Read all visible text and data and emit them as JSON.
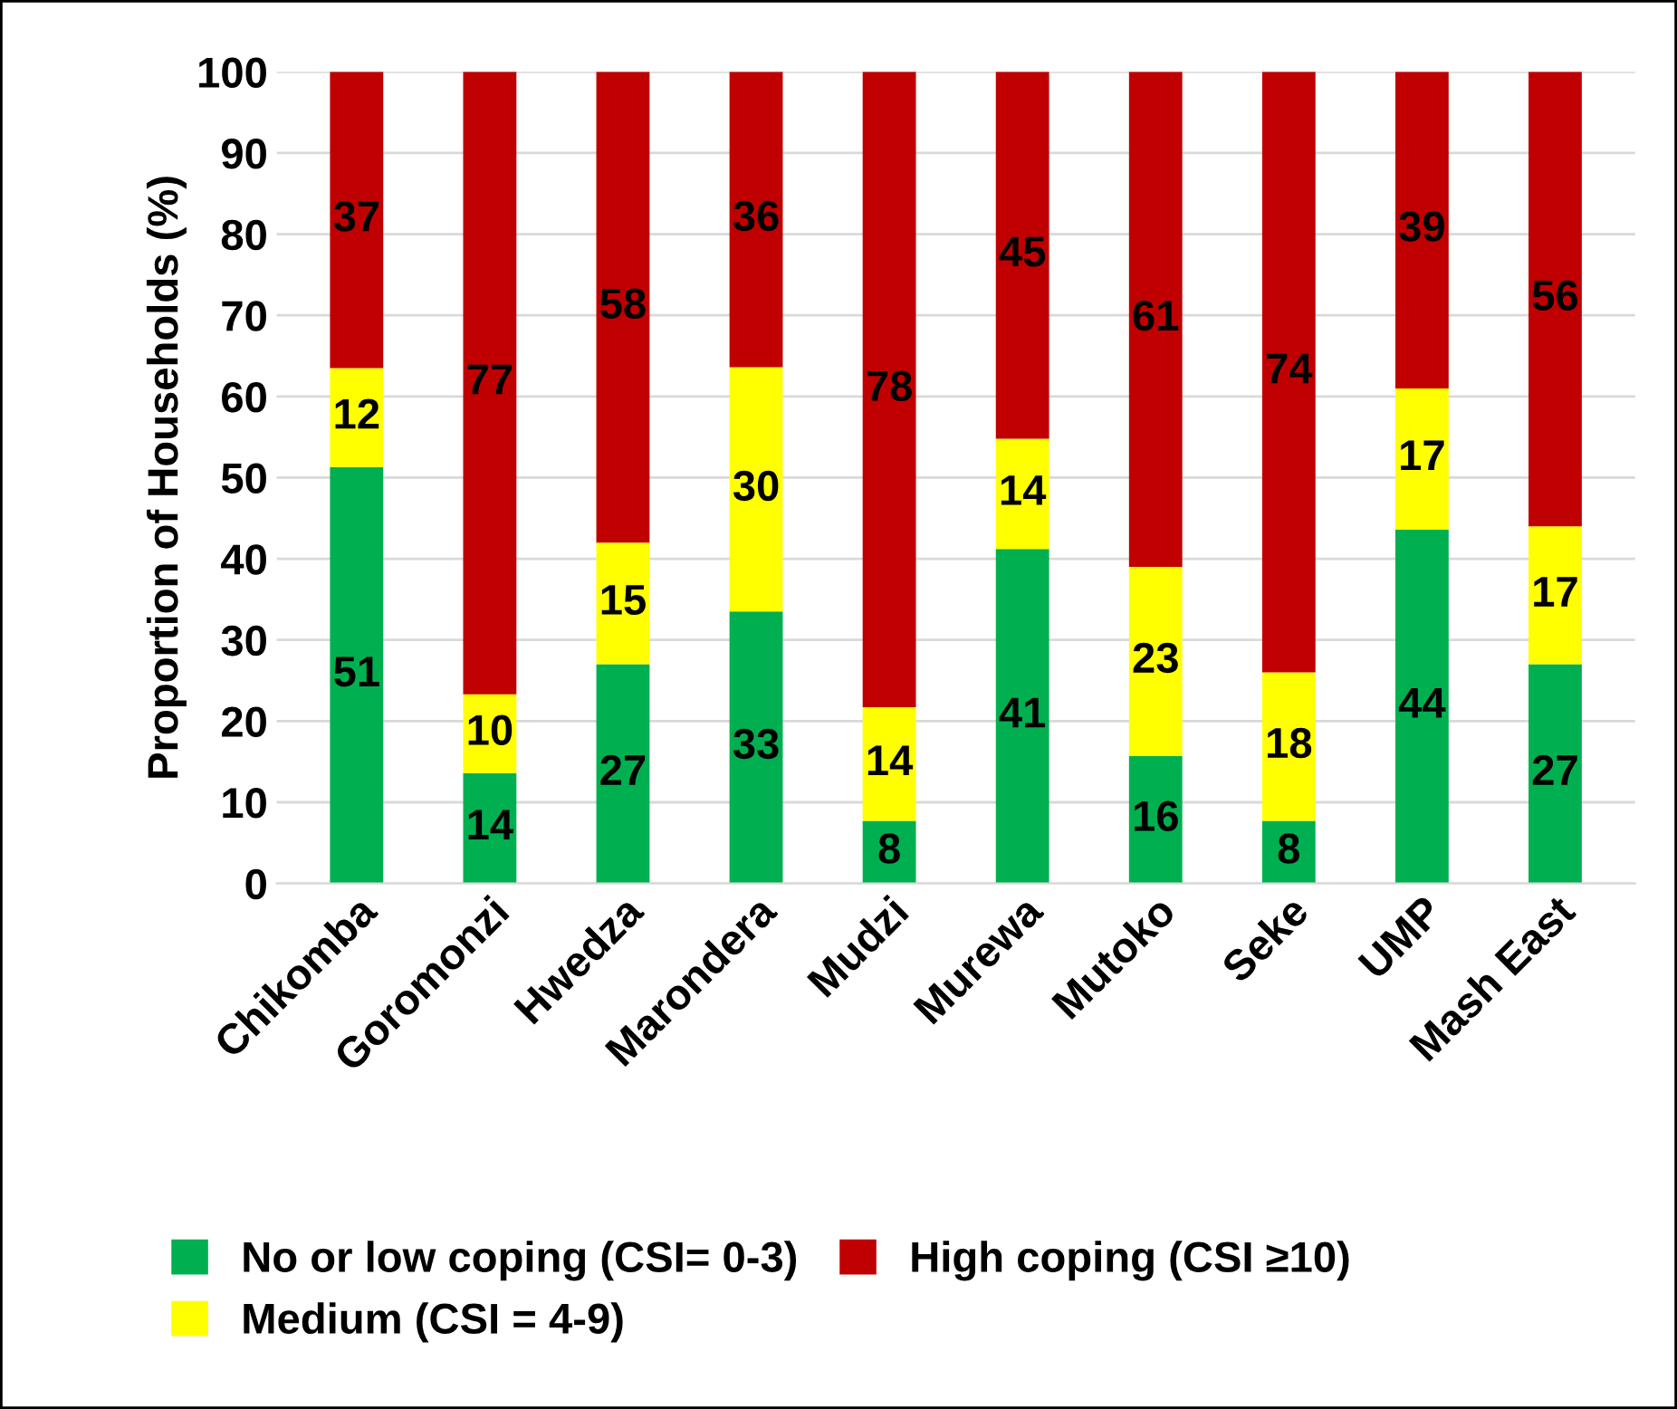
{
  "chart_data": {
    "type": "bar",
    "stacked": true,
    "ylabel": "Proportion of Households (%)",
    "categories": [
      "Chikomba",
      "Goromonzi",
      "Hwedza",
      "Marondera",
      "Mudzi",
      "Murewa",
      "Mutoko",
      "Seke",
      "UMP",
      "Mash East"
    ],
    "series": [
      {
        "name": "No or low coping (CSI= 0-3)",
        "color": "#00b050",
        "values": [
          51.3,
          13.6,
          27,
          33.5,
          7.7,
          41.2,
          15.7,
          7.7,
          43.6,
          27
        ],
        "value_labels": [
          "51",
          "14",
          "27",
          "33",
          "8",
          "41",
          "16",
          "8",
          "44",
          "27"
        ]
      },
      {
        "name": "Medium (CSI = 4-9)",
        "color": "#ffff00",
        "values": [
          12.2,
          9.7,
          15,
          30.1,
          14,
          13.6,
          23.3,
          18.3,
          17.4,
          17
        ],
        "value_labels": [
          "12",
          "10",
          "15",
          "30",
          "14",
          "14",
          "23",
          "18",
          "17",
          "17"
        ]
      },
      {
        "name": "High coping (CSI ≥10)",
        "color": "#c00000",
        "values": [
          36.5,
          76.7,
          58,
          36.4,
          78.3,
          45.2,
          61,
          74,
          39,
          56
        ],
        "value_labels": [
          "37",
          "77",
          "58",
          "36",
          "78",
          "45",
          "61",
          "74",
          "39",
          "56"
        ]
      }
    ],
    "ylim": [
      0,
      100
    ],
    "yticks": [
      0,
      10,
      20,
      30,
      40,
      50,
      60,
      70,
      80,
      90,
      100
    ],
    "grid": "y",
    "legend": "bottom"
  }
}
